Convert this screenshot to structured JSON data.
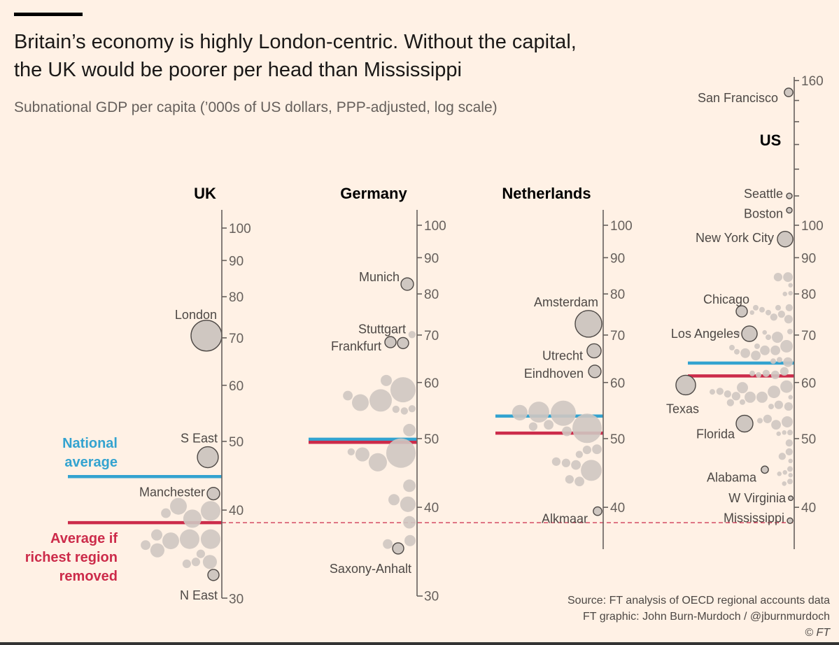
{
  "header": {
    "title_line1": "Britain’s economy is highly London-centric. Without the capital,",
    "title_line2": "the UK would be poorer per head than Mississippi",
    "subtitle": "Subnational GDP per capita (’000s of US dollars, PPP-adjusted, log scale)"
  },
  "annotations": {
    "national_average": [
      "National",
      "average"
    ],
    "average_without_richest": [
      "Average if",
      "richest region",
      "removed"
    ]
  },
  "footer": {
    "source": "Source: FT analysis of OECD regional accounts data",
    "credit": "FT graphic: John Burn-Murdoch / @jburnmurdoch",
    "copyright": "© FT"
  },
  "colors": {
    "background": "#fff1e5",
    "national_average": "#33a3d0",
    "average_without_richest": "#cc2b4a",
    "bubble": "#cfc7c1",
    "bubble_outline": "#4d4845",
    "axis": "#66605c"
  },
  "chart_data": {
    "type": "scatter",
    "subtype": "beeswarm bubble chart, one vertical log axis per country",
    "scale": "log",
    "y_unit": "GDP per capita, '000s US$ PPP",
    "bubble_size": "population (millions, approx.)",
    "reference_line": {
      "style": "dashed",
      "value": 38.4,
      "from": "UK average if richest region removed"
    },
    "panels": [
      {
        "country": "UK",
        "ylim": [
          30,
          106
        ],
        "ticks": [
          30,
          40,
          50,
          60,
          70,
          80,
          90,
          100
        ],
        "tick_labels": [
          "30",
          "40",
          "50",
          "60",
          "70",
          "80",
          "90",
          "100"
        ],
        "national_average": 44.6,
        "average_without_richest": 38.4,
        "named": [
          {
            "name": "London",
            "value": 70.5,
            "pop": 9.1
          },
          {
            "name": "S East",
            "value": 47.5,
            "pop": 4.2
          },
          {
            "name": "Manchester",
            "value": 42.2,
            "pop": 1.5
          },
          {
            "name": "N East",
            "value": 32.4,
            "pop": 1.2
          }
        ],
        "others": [
          {
            "value": 36.4,
            "pop": 3.7
          },
          {
            "value": 36.4,
            "pop": 3.7
          },
          {
            "value": 36.2,
            "pop": 2.7
          },
          {
            "value": 39.9,
            "pop": 3.7
          },
          {
            "value": 38.9,
            "pop": 3.2
          },
          {
            "value": 40.5,
            "pop": 2.7
          },
          {
            "value": 39.6,
            "pop": 0.9
          },
          {
            "value": 36.9,
            "pop": 1.2
          },
          {
            "value": 35.7,
            "pop": 0.9
          },
          {
            "value": 35.1,
            "pop": 1.9
          },
          {
            "value": 34.7,
            "pop": 0.7
          },
          {
            "value": 33.8,
            "pop": 1.9
          },
          {
            "value": 33.8,
            "pop": 0.7
          },
          {
            "value": 33.6,
            "pop": 0.7
          }
        ]
      },
      {
        "country": "Germany",
        "ylim": [
          30,
          107
        ],
        "ticks": [
          30,
          40,
          50,
          60,
          70,
          80,
          90,
          100
        ],
        "tick_labels": [
          "30",
          "40",
          "50",
          "60",
          "70",
          "80",
          "90",
          "100"
        ],
        "national_average": 49.9,
        "average_without_richest": 49.4,
        "named": [
          {
            "name": "Munich",
            "value": 82.6,
            "pop": 1.5
          },
          {
            "name": "Stuttgart",
            "value": 68.2,
            "pop": 1.2
          },
          {
            "name": "Frankfurt",
            "value": 68.4,
            "pop": 1.2
          },
          {
            "name": "Saxony-Anhalt",
            "value": 35.0,
            "pop": 1.2
          }
        ],
        "others": [
          {
            "value": 58.6,
            "pop": 6.1
          },
          {
            "value": 56.6,
            "pop": 4.8
          },
          {
            "value": 56.2,
            "pop": 2.7
          },
          {
            "value": 55.1,
            "pop": 0.5
          },
          {
            "value": 54.7,
            "pop": 0.5
          },
          {
            "value": 55.0,
            "pop": 0.5
          },
          {
            "value": 60.4,
            "pop": 1.2
          },
          {
            "value": 57.5,
            "pop": 0.9
          },
          {
            "value": 51.4,
            "pop": 1.5
          },
          {
            "value": 47.7,
            "pop": 8.3
          },
          {
            "value": 46.3,
            "pop": 3.2
          },
          {
            "value": 47.5,
            "pop": 1.9
          },
          {
            "value": 47.9,
            "pop": 0.5
          },
          {
            "value": 42.9,
            "pop": 1.5
          },
          {
            "value": 40.4,
            "pop": 2.3
          },
          {
            "value": 41.0,
            "pop": 1.2
          },
          {
            "value": 38.1,
            "pop": 1.5
          },
          {
            "value": 35.9,
            "pop": 1.2
          },
          {
            "value": 35.5,
            "pop": 0.9
          },
          {
            "value": 70.1,
            "pop": 0.5
          }
        ]
      },
      {
        "country": "Netherlands",
        "ylim": [
          35,
          107
        ],
        "ticks": [
          40,
          50,
          60,
          70,
          80,
          90,
          100
        ],
        "tick_labels": [
          "40",
          "50",
          "60",
          "70",
          "80",
          "90",
          "100"
        ],
        "national_average": 53.8,
        "average_without_richest": 50.9,
        "named": [
          {
            "name": "Amsterdam",
            "value": 72.6,
            "pop": 6.8
          },
          {
            "name": "Utrecht",
            "value": 66.5,
            "pop": 1.9
          },
          {
            "name": "Eindhoven",
            "value": 62.2,
            "pop": 1.5
          },
          {
            "name": "Alkmaar",
            "value": 39.5,
            "pop": 0.7
          }
        ],
        "others": [
          {
            "value": 51.7,
            "pop": 8.3
          },
          {
            "value": 54.3,
            "pop": 6.1
          },
          {
            "value": 54.5,
            "pop": 4.2
          },
          {
            "value": 54.4,
            "pop": 2.3
          },
          {
            "value": 52.3,
            "pop": 0.9
          },
          {
            "value": 52.0,
            "pop": 0.7
          },
          {
            "value": 51.2,
            "pop": 0.9
          },
          {
            "value": 48.3,
            "pop": 0.9
          },
          {
            "value": 48.2,
            "pop": 0.7
          },
          {
            "value": 47.5,
            "pop": 0.5
          },
          {
            "value": 45.1,
            "pop": 4.2
          },
          {
            "value": 45.9,
            "pop": 0.9
          },
          {
            "value": 46.2,
            "pop": 0.7
          },
          {
            "value": 46.4,
            "pop": 0.7
          },
          {
            "value": 43.5,
            "pop": 0.9
          },
          {
            "value": 43.8,
            "pop": 0.7
          }
        ]
      },
      {
        "country": "US",
        "ylim": [
          35,
          162
        ],
        "ticks": [
          40,
          50,
          60,
          70,
          80,
          90,
          100,
          110,
          120,
          130,
          140,
          150,
          160
        ],
        "tick_labels": [
          "40",
          "50",
          "60",
          "70",
          "80",
          "90",
          "100",
          "",
          "",
          "",
          "",
          "",
          "160"
        ],
        "national_average": 63.9,
        "average_without_richest": 61.3,
        "named": [
          {
            "name": "San Francisco",
            "value": 154,
            "pop": 0.7
          },
          {
            "name": "Seattle",
            "value": 110,
            "pop": 0.3
          },
          {
            "name": "Boston",
            "value": 105,
            "pop": 0.3
          },
          {
            "name": "New York City",
            "value": 95.6,
            "pop": 2.3
          },
          {
            "name": "Chicago",
            "value": 75.6,
            "pop": 1.2
          },
          {
            "name": "Los Angeles",
            "value": 70.3,
            "pop": 2.3
          },
          {
            "name": "Texas",
            "value": 59.5,
            "pop": 3.7
          },
          {
            "name": "Florida",
            "value": 52.5,
            "pop": 2.7
          },
          {
            "name": "Alabama",
            "value": 45.2,
            "pop": 0.5
          },
          {
            "name": "W Virginia",
            "value": 41.2,
            "pop": 0.2
          },
          {
            "name": "Mississippi",
            "value": 38.3,
            "pop": 0.3
          }
        ],
        "others": [
          {
            "value": 84.5,
            "pop": 0.9
          },
          {
            "value": 84.5,
            "pop": 0.7
          },
          {
            "value": 82.3,
            "pop": 0.2
          },
          {
            "value": 80.2,
            "pop": 0.2
          },
          {
            "value": 80.0,
            "pop": 0.2
          },
          {
            "value": 76.5,
            "pop": 0.5
          },
          {
            "value": 75.3,
            "pop": 0.3
          },
          {
            "value": 74.9,
            "pop": 0.5
          },
          {
            "value": 76.5,
            "pop": 0.3
          },
          {
            "value": 76.0,
            "pop": 0.3
          },
          {
            "value": 76.5,
            "pop": 0.3
          },
          {
            "value": 75.3,
            "pop": 0.2
          },
          {
            "value": 73.7,
            "pop": 0.7
          },
          {
            "value": 74.2,
            "pop": 0.5
          },
          {
            "value": 70.8,
            "pop": 0.3
          },
          {
            "value": 70.6,
            "pop": 0.2
          },
          {
            "value": 70.4,
            "pop": 0.2
          },
          {
            "value": 69.5,
            "pop": 1.2
          },
          {
            "value": 69.5,
            "pop": 0.3
          },
          {
            "value": 67.5,
            "pop": 1.5
          },
          {
            "value": 66.6,
            "pop": 0.9
          },
          {
            "value": 66.6,
            "pop": 0.9
          },
          {
            "value": 65.5,
            "pop": 0.9
          },
          {
            "value": 66.0,
            "pop": 0.9
          },
          {
            "value": 66.3,
            "pop": 0.3
          },
          {
            "value": 67.5,
            "pop": 0.3
          },
          {
            "value": 67.2,
            "pop": 0.3
          },
          {
            "value": 64.6,
            "pop": 0.3
          },
          {
            "value": 64.1,
            "pop": 0.9
          },
          {
            "value": 64.3,
            "pop": 0.3
          },
          {
            "value": 62.2,
            "pop": 0.7
          },
          {
            "value": 61.8,
            "pop": 0.5
          },
          {
            "value": 61.5,
            "pop": 0.7
          },
          {
            "value": 61.5,
            "pop": 0.3
          },
          {
            "value": 61.8,
            "pop": 0.3
          },
          {
            "value": 59.2,
            "pop": 1.5
          },
          {
            "value": 58.2,
            "pop": 1.5
          },
          {
            "value": 57.2,
            "pop": 1.2
          },
          {
            "value": 57.2,
            "pop": 1.2
          },
          {
            "value": 59.0,
            "pop": 1.2
          },
          {
            "value": 57.4,
            "pop": 0.7
          },
          {
            "value": 57.8,
            "pop": 0.5
          },
          {
            "value": 58.3,
            "pop": 0.5
          },
          {
            "value": 58.2,
            "pop": 0.3
          },
          {
            "value": 57.2,
            "pop": 0.2
          },
          {
            "value": 55.5,
            "pop": 0.7
          },
          {
            "value": 55.8,
            "pop": 0.7
          },
          {
            "value": 56.2,
            "pop": 0.5
          },
          {
            "value": 55.5,
            "pop": 0.3
          },
          {
            "value": 56.3,
            "pop": 0.3
          },
          {
            "value": 52.8,
            "pop": 1.2
          },
          {
            "value": 52.3,
            "pop": 0.9
          },
          {
            "value": 53.3,
            "pop": 0.7
          },
          {
            "value": 53.0,
            "pop": 0.3
          },
          {
            "value": 51.0,
            "pop": 0.3
          },
          {
            "value": 51.0,
            "pop": 0.2
          },
          {
            "value": 50.8,
            "pop": 0.2
          },
          {
            "value": 49.3,
            "pop": 0.5
          },
          {
            "value": 47.9,
            "pop": 0.5
          },
          {
            "value": 47.2,
            "pop": 0.5
          },
          {
            "value": 46.5,
            "pop": 0.2
          },
          {
            "value": 45.3,
            "pop": 0.3
          },
          {
            "value": 44.8,
            "pop": 0.2
          },
          {
            "value": 44.6,
            "pop": 0.2
          },
          {
            "value": 44.4,
            "pop": 0.2
          },
          {
            "value": 43.5,
            "pop": 0.3
          },
          {
            "value": 43.2,
            "pop": 0.2
          }
        ]
      }
    ]
  }
}
